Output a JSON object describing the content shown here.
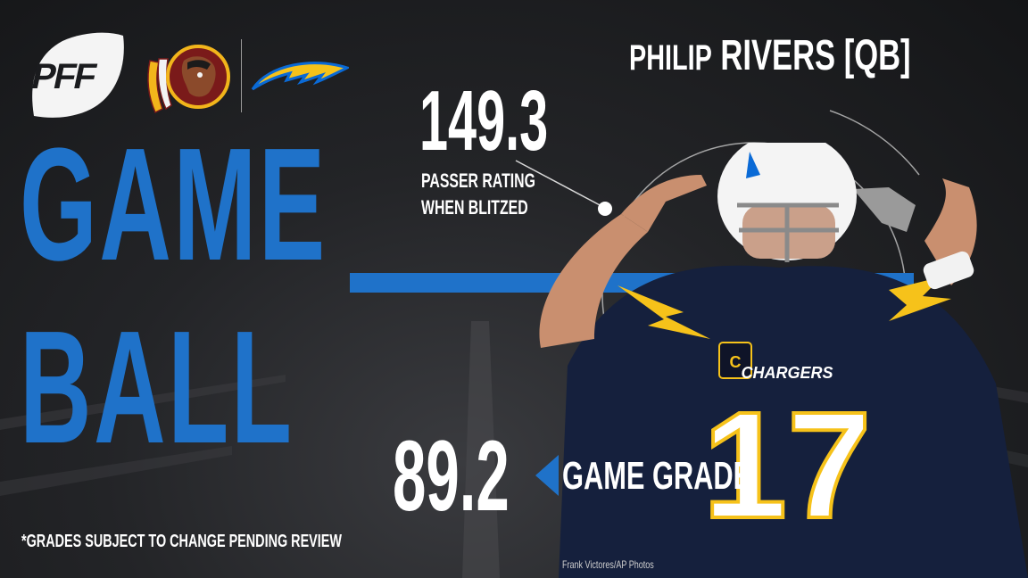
{
  "brand": {
    "logo_text": "PFF",
    "logo_icon": "pff-football-icon",
    "team1_icon": "redskins-logo-icon",
    "team2_icon": "chargers-bolt-icon",
    "accent_color": "#1f72c9",
    "team1_color": "#7a1a1a",
    "team1_gold": "#f2b51b",
    "team2_color": "#0a6ad6",
    "team2_gold": "#f6c21a"
  },
  "headline": {
    "line1": "GAME",
    "line2": "BALL"
  },
  "player": {
    "first_name": "PHILIP",
    "last_name_pos": "RIVERS [QB]",
    "jersey_text": "CHARGERS",
    "jersey_number": "17",
    "photo_credit": "Frank Victores/AP Photos"
  },
  "stat": {
    "value": "149.3",
    "label_line1": "PASSER RATING",
    "label_line2": "WHEN BLITZED"
  },
  "grade": {
    "value": "89.2",
    "label": "GAME GRADE"
  },
  "disclaimer": "*GRADES SUBJECT TO CHANGE PENDING REVIEW"
}
